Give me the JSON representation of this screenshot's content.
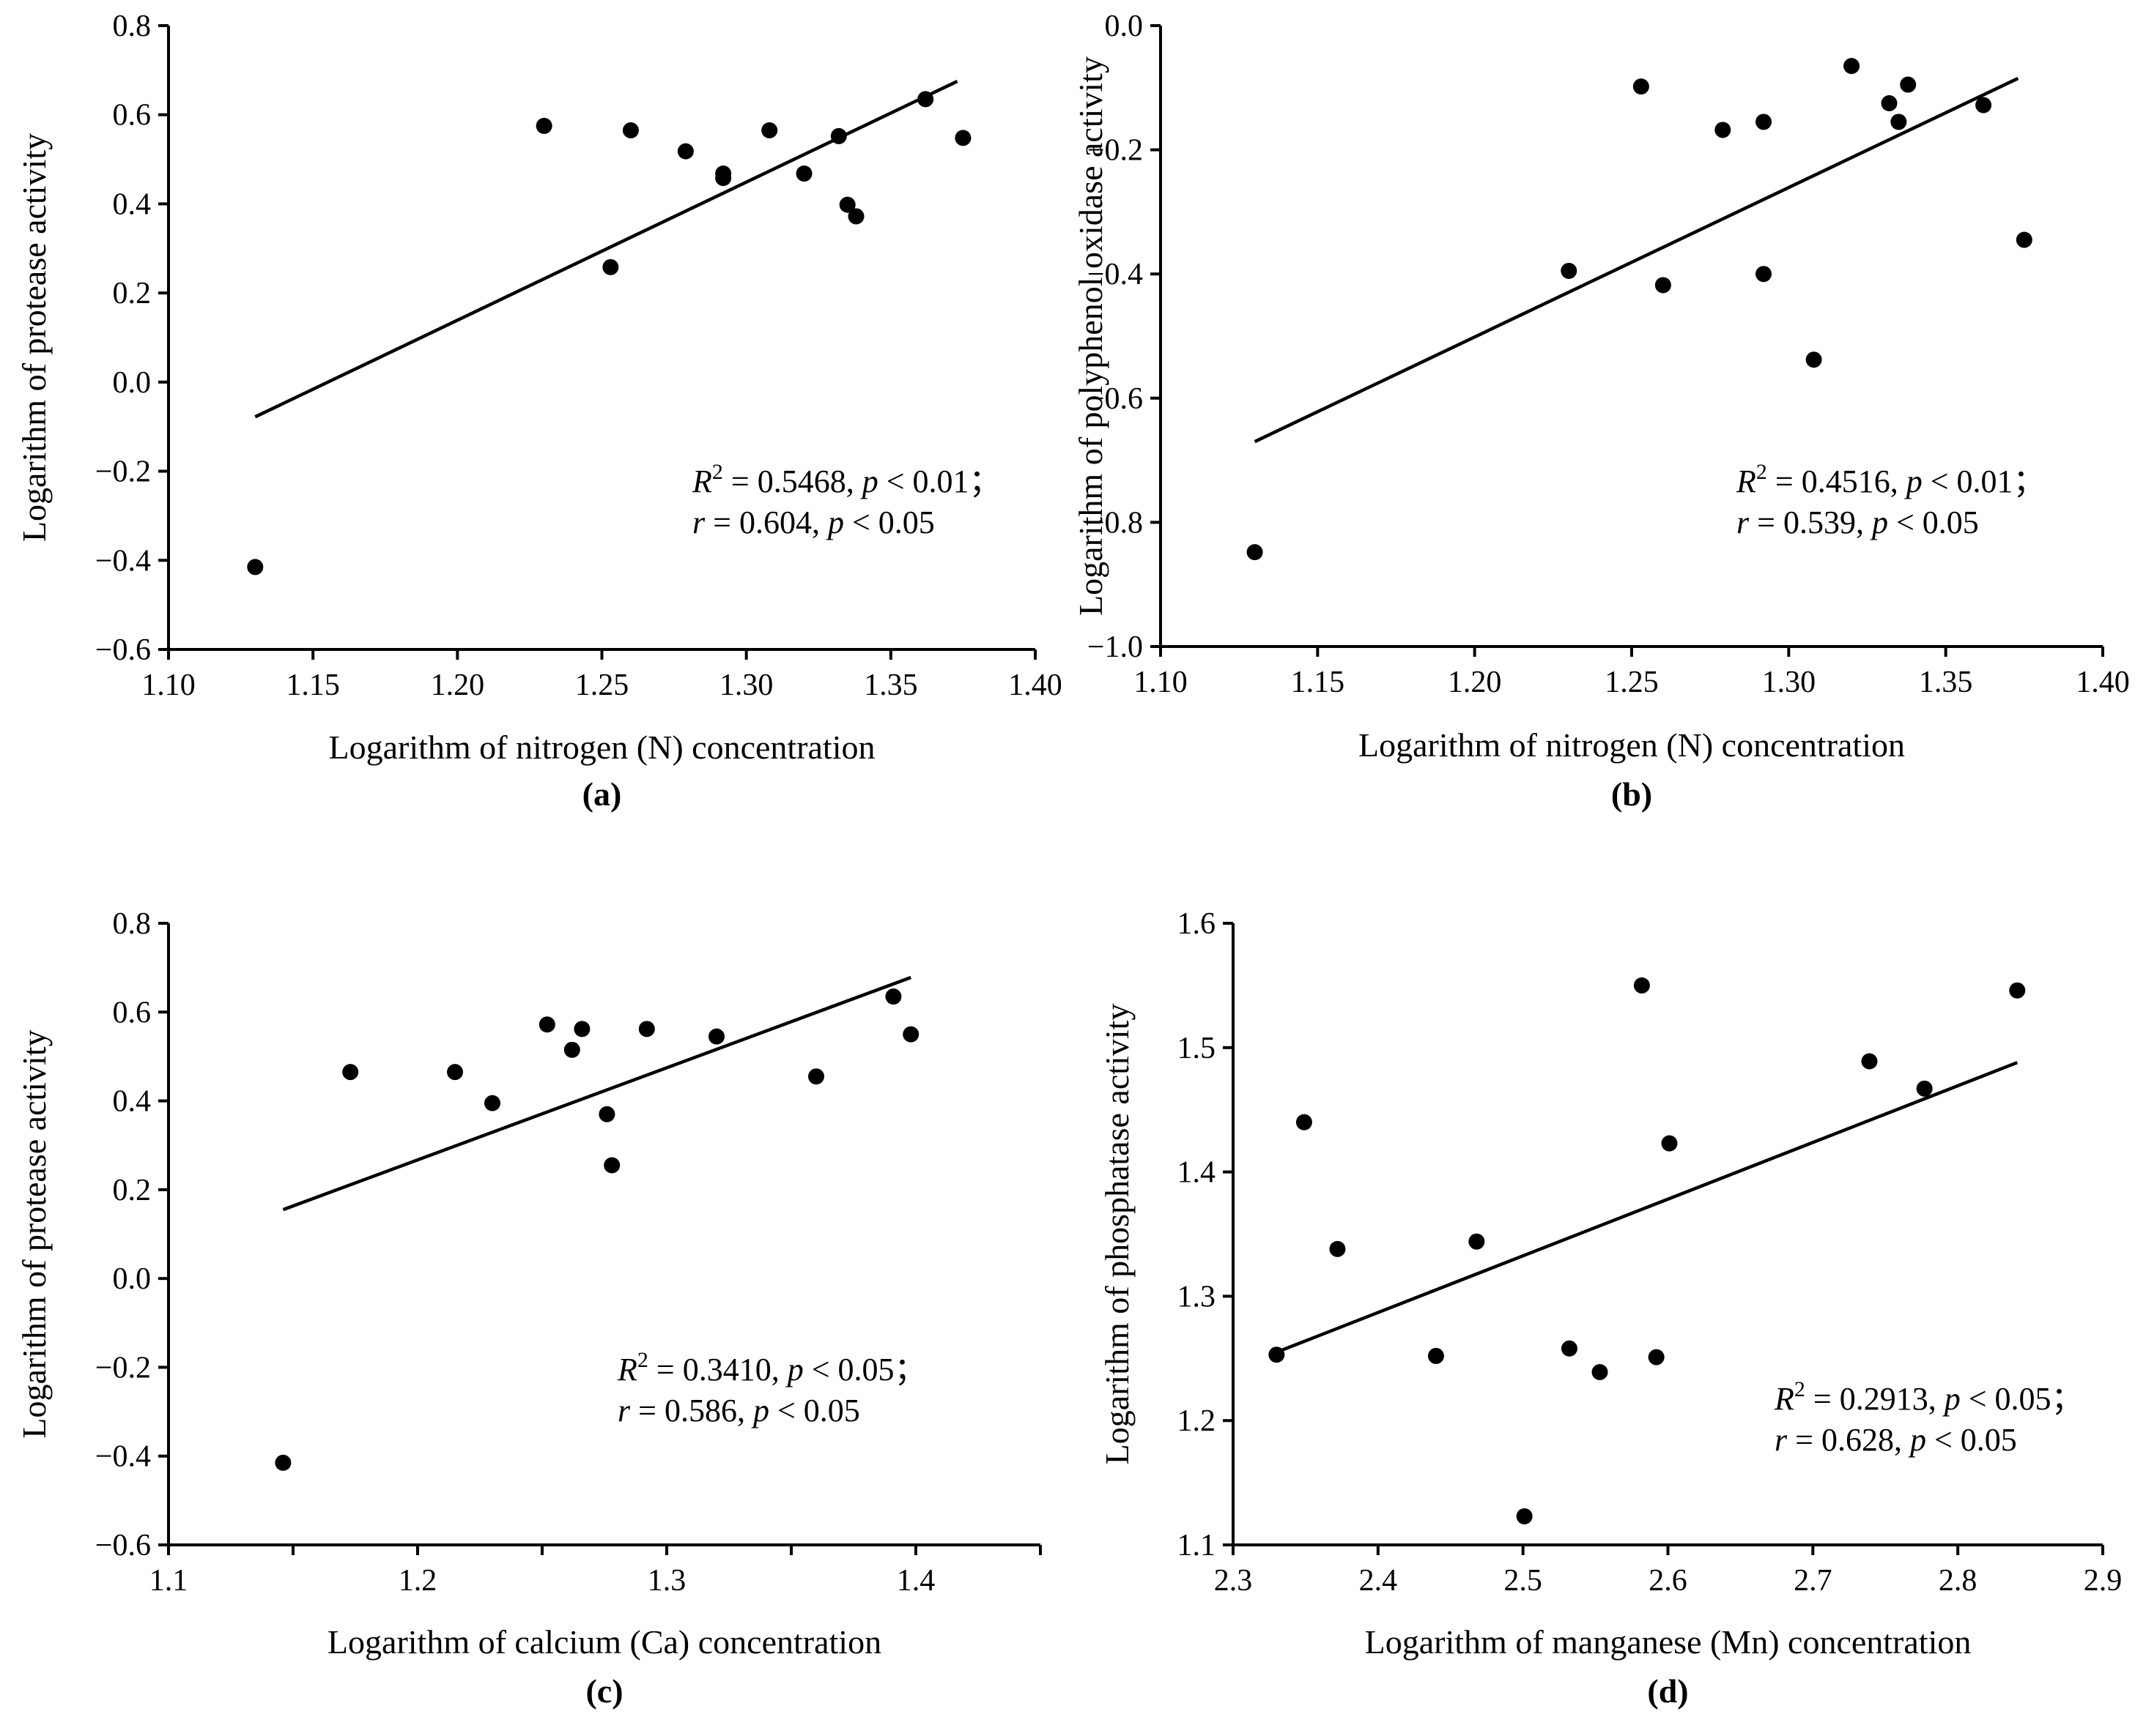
{
  "chart_data": [
    {
      "type": "scatter",
      "panel": "(a)",
      "xlabel": "Logarithm of nitrogen (N) concentration",
      "ylabel": "Logarithm of protease activity",
      "xlim": [
        1.1,
        1.4
      ],
      "ylim": [
        -0.6,
        0.8
      ],
      "xticks": [
        "1.10",
        "1.15",
        "1.20",
        "1.25",
        "1.30",
        "1.35",
        "1.40"
      ],
      "xtick_values": [
        1.1,
        1.15,
        1.2,
        1.25,
        1.3,
        1.35,
        1.4
      ],
      "yticks": [
        "0.8",
        "0.6",
        "0.4",
        "0.2",
        "0.0",
        "−0.2",
        "−0.4",
        "−0.6"
      ],
      "ytick_values": [
        0.8,
        0.6,
        0.4,
        0.2,
        0.0,
        -0.2,
        -0.4,
        -0.6
      ],
      "points": [
        [
          1.13,
          -0.415
        ],
        [
          1.23,
          0.575
        ],
        [
          1.253,
          0.258
        ],
        [
          1.26,
          0.565
        ],
        [
          1.279,
          0.518
        ],
        [
          1.292,
          0.468
        ],
        [
          1.292,
          0.458
        ],
        [
          1.308,
          0.565
        ],
        [
          1.32,
          0.468
        ],
        [
          1.332,
          0.552
        ],
        [
          1.335,
          0.398
        ],
        [
          1.338,
          0.372
        ],
        [
          1.362,
          0.635
        ],
        [
          1.375,
          0.548
        ]
      ],
      "fit": [
        [
          1.13,
          -0.078
        ],
        [
          1.373,
          0.675
        ]
      ],
      "annotation": {
        "line1": [
          "R",
          "2",
          " = 0.5468, ",
          "p",
          " < 0.01；"
        ],
        "line2": [
          "r",
          " = 0.604, ",
          "p",
          " < 0.05"
        ]
      }
    },
    {
      "type": "scatter",
      "panel": "(b)",
      "xlabel": "Logarithm of nitrogen (N) concentration",
      "ylabel": "Logarithm of polyphenol oxidase activity",
      "xlim": [
        1.1,
        1.4
      ],
      "ylim": [
        -1.0,
        0.0
      ],
      "xticks": [
        "1.10",
        "1.15",
        "1.20",
        "1.25",
        "1.30",
        "1.35",
        "1.40"
      ],
      "xtick_values": [
        1.1,
        1.15,
        1.2,
        1.25,
        1.3,
        1.35,
        1.4
      ],
      "yticks": [
        "0.0",
        "−0.2",
        "−0.4",
        "−0.6",
        "−0.8",
        "−1.0"
      ],
      "ytick_values": [
        0.0,
        -0.2,
        -0.4,
        -0.6,
        -0.8,
        -1.0
      ],
      "points": [
        [
          1.13,
          -0.848
        ],
        [
          1.23,
          -0.395
        ],
        [
          1.253,
          -0.098
        ],
        [
          1.26,
          -0.418
        ],
        [
          1.279,
          -0.168
        ],
        [
          1.292,
          -0.155
        ],
        [
          1.292,
          -0.4
        ],
        [
          1.308,
          -0.538
        ],
        [
          1.32,
          -0.065
        ],
        [
          1.332,
          -0.125
        ],
        [
          1.335,
          -0.155
        ],
        [
          1.338,
          -0.095
        ],
        [
          1.362,
          -0.128
        ],
        [
          1.375,
          -0.345
        ]
      ],
      "fit": [
        [
          1.13,
          -0.67
        ],
        [
          1.373,
          -0.085
        ]
      ],
      "annotation": {
        "line1": [
          "R",
          "2",
          " = 0.4516, ",
          "p",
          " < 0.01；"
        ],
        "line2": [
          "r",
          " = 0.539, ",
          "p",
          " < 0.05"
        ]
      }
    },
    {
      "type": "scatter",
      "panel": "(c)",
      "xlabel": "Logarithm of calcium (Ca) concentration",
      "ylabel": "Logarithm of protease activity",
      "xlim": [
        1.1,
        1.45
      ],
      "ylim": [
        -0.6,
        0.8
      ],
      "xticks": [
        "1.1",
        "1.2",
        "1.3",
        "1.4"
      ],
      "xtick_values": [
        1.1,
        1.2,
        1.3,
        1.4
      ],
      "xminor": [
        1.15,
        1.25,
        1.35,
        1.45
      ],
      "yticks": [
        "0.8",
        "0.6",
        "0.4",
        "0.2",
        "0.0",
        "−0.2",
        "−0.4",
        "−0.6"
      ],
      "ytick_values": [
        0.8,
        0.6,
        0.4,
        0.2,
        0.0,
        -0.2,
        -0.4,
        -0.6
      ],
      "points": [
        [
          1.146,
          -0.415
        ],
        [
          1.173,
          0.465
        ],
        [
          1.215,
          0.465
        ],
        [
          1.23,
          0.395
        ],
        [
          1.252,
          0.572
        ],
        [
          1.262,
          0.515
        ],
        [
          1.266,
          0.562
        ],
        [
          1.276,
          0.37
        ],
        [
          1.278,
          0.255
        ],
        [
          1.292,
          0.562
        ],
        [
          1.32,
          0.545
        ],
        [
          1.36,
          0.455
        ],
        [
          1.391,
          0.635
        ],
        [
          1.398,
          0.55
        ]
      ],
      "fit": [
        [
          1.146,
          0.155
        ],
        [
          1.398,
          0.678
        ]
      ],
      "annotation": {
        "line1": [
          "R",
          "2",
          " = 0.3410, ",
          "p",
          " < 0.05；"
        ],
        "line2": [
          "r",
          " = 0.586, ",
          "p",
          " < 0.05"
        ]
      }
    },
    {
      "type": "scatter",
      "panel": "(d)",
      "xlabel": "Logarithm of manganese (Mn) concentration",
      "ylabel": "Logarithm of phosphatase activity",
      "xlim": [
        2.3,
        2.9
      ],
      "ylim": [
        1.1,
        1.6
      ],
      "xticks": [
        "2.3",
        "2.4",
        "2.5",
        "2.6",
        "2.7",
        "2.8",
        "2.9"
      ],
      "xtick_values": [
        2.3,
        2.4,
        2.5,
        2.6,
        2.7,
        2.8,
        2.9
      ],
      "yticks": [
        "1.6",
        "1.5",
        "1.4",
        "1.3",
        "1.2",
        "1.1"
      ],
      "ytick_values": [
        1.6,
        1.5,
        1.4,
        1.3,
        1.2,
        1.1
      ],
      "points": [
        [
          2.33,
          1.253
        ],
        [
          2.349,
          1.44
        ],
        [
          2.372,
          1.338
        ],
        [
          2.44,
          1.252
        ],
        [
          2.468,
          1.344
        ],
        [
          2.501,
          1.123
        ],
        [
          2.532,
          1.258
        ],
        [
          2.553,
          1.239
        ],
        [
          2.582,
          1.55
        ],
        [
          2.592,
          1.251
        ],
        [
          2.601,
          1.423
        ],
        [
          2.739,
          1.489
        ],
        [
          2.777,
          1.467
        ],
        [
          2.841,
          1.546
        ]
      ],
      "fit": [
        [
          2.33,
          1.255
        ],
        [
          2.841,
          1.488
        ]
      ],
      "annotation": {
        "line1": [
          "R",
          "2",
          " = 0.2913, ",
          "p",
          " < 0.05；"
        ],
        "line2": [
          "r",
          " = 0.628, ",
          "p",
          " < 0.05"
        ]
      }
    }
  ]
}
